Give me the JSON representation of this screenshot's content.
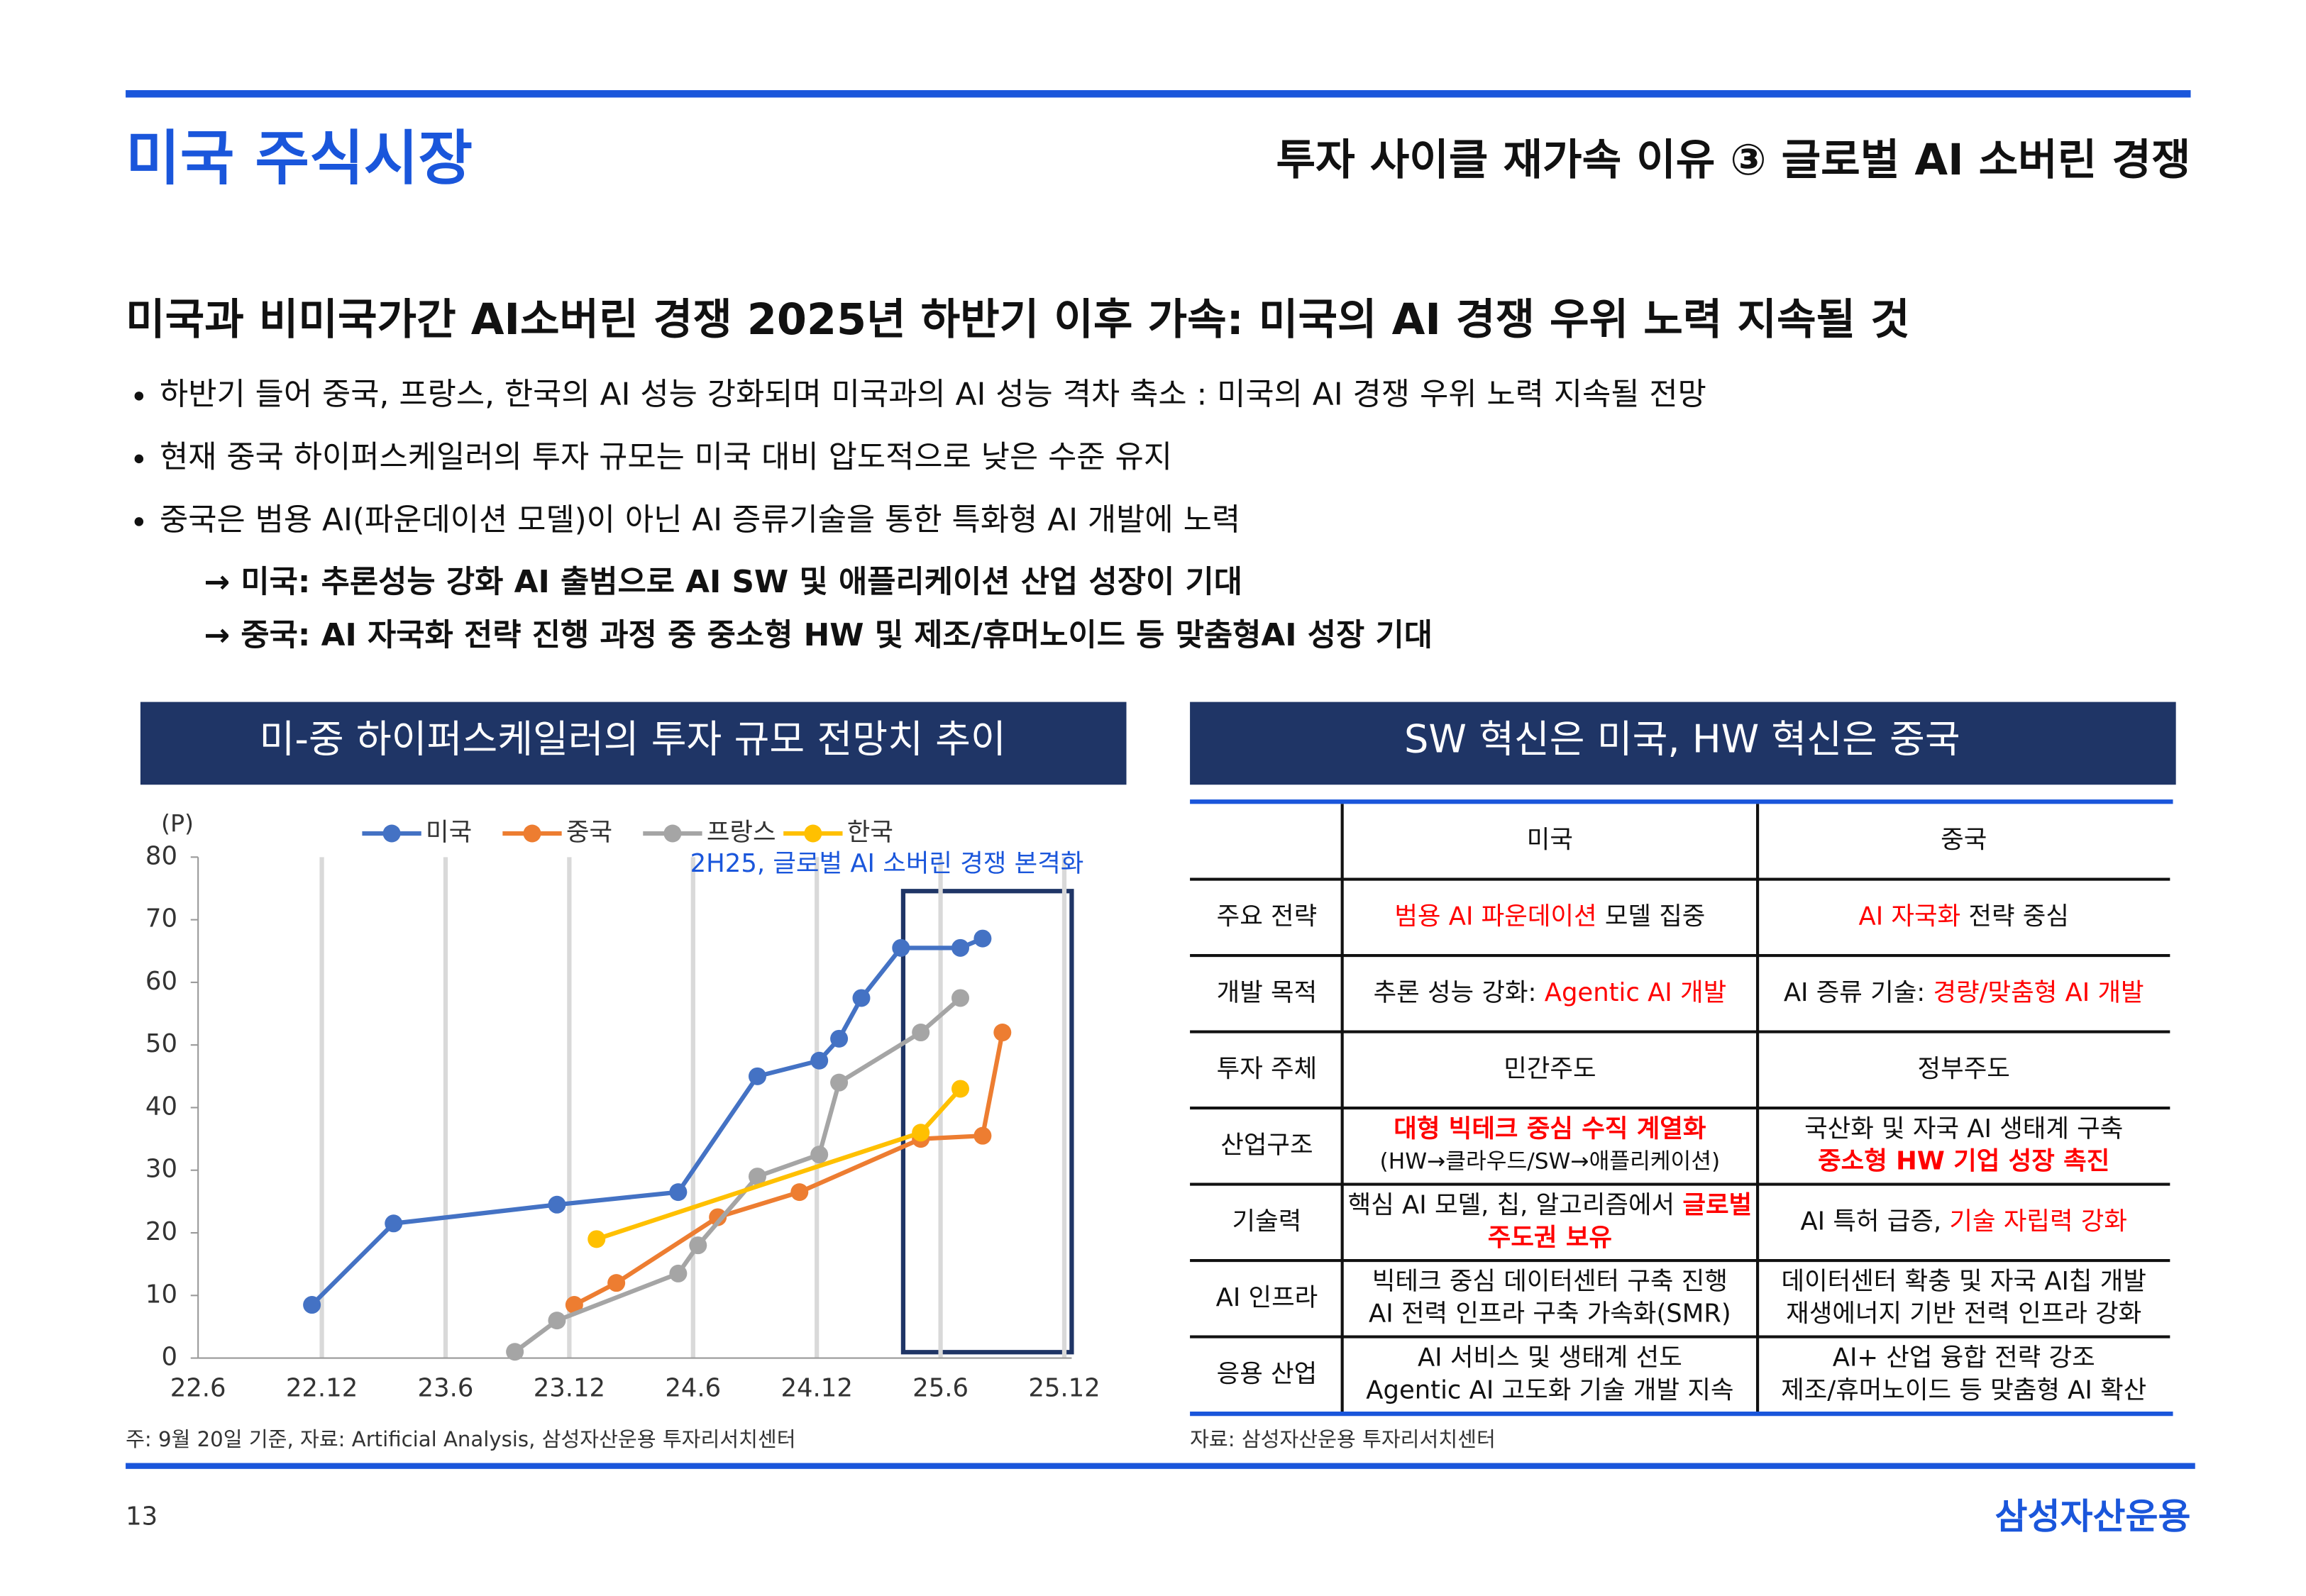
{
  "header": {
    "title": "미국 주식시장",
    "subtitle": "투자 사이클 재가속 이유 ③ 글로벌 AI 소버린 경쟁"
  },
  "headline": "미국과 비미국가간 AI소버린 경쟁 2025년 하반기 이후 가속: 미국의 AI 경쟁 우위 노력 지속될 것",
  "bullets": [
    "하반기 들어 중국, 프랑스, 한국의 AI 성능 강화되며 미국과의 AI 성능 격차 축소 : 미국의 AI 경쟁 우위 노력 지속될 전망",
    "현재 중국 하이퍼스케일러의 투자 규모는 미국 대비 압도적으로 낮은 수준 유지",
    "중국은 범용 AI(파운데이션 모델)이 아닌 AI 증류기술을 통한 특화형 AI 개발에 노력"
  ],
  "arrows": [
    "→ 미국: 추론성능 강화 AI 출범으로 AI SW 및 애플리케이션 산업 성장이 기대",
    "→ 중국: AI 자국화 전략 진행 과정 중 중소형 HW 및 제조/휴머노이드 등 맞춤형AI 성장 기대"
  ],
  "chart_panel": {
    "title": "미-중 하이퍼스케일러의 투자 규모 전망치 추이",
    "note": "주: 9월 20일 기준, 자료: Artificial Analysis, 삼성자산운용 투자리서치센터"
  },
  "chart_data": {
    "type": "line",
    "y_unit": "(P)",
    "annotation": "2H25, 글로벌 AI 소버린 경쟁 본격화",
    "xlim": [
      2022.5,
      2026
    ],
    "xticks": [
      {
        "value": 2022.5,
        "label": "22.6"
      },
      {
        "value": 2023,
        "label": "22.12"
      },
      {
        "value": 2023.5,
        "label": "23.6"
      },
      {
        "value": 2024,
        "label": "23.12"
      },
      {
        "value": 2024.5,
        "label": "24.6"
      },
      {
        "value": 2025,
        "label": "24.12"
      },
      {
        "value": 2025.5,
        "label": "25.6"
      },
      {
        "value": 2026,
        "label": "25.12"
      }
    ],
    "ylim": [
      0,
      80
    ],
    "yticks": [
      0,
      10,
      20,
      30,
      40,
      50,
      60,
      70,
      80
    ],
    "grid": "x",
    "series": [
      {
        "name": "미국",
        "color": "#4472c4",
        "x": [
          2022.96,
          2023.29,
          2023.95,
          2024.44,
          2024.76,
          2025.01,
          2025.09,
          2025.18,
          2025.34,
          2025.58,
          2025.67
        ],
        "values": [
          8.5,
          21.5,
          24.5,
          26.5,
          45,
          47.5,
          51,
          57.5,
          65.5,
          65.5,
          67
        ]
      },
      {
        "name": "중국",
        "color": "#ed7d31",
        "x": [
          2024.02,
          2024.19,
          2024.6,
          2024.93,
          2025.42,
          2025.67,
          2025.75
        ],
        "values": [
          8.5,
          12,
          22.5,
          26.5,
          35,
          35.5,
          52
        ]
      },
      {
        "name": "프랑스",
        "color": "#a5a5a5",
        "x": [
          2023.78,
          2023.95,
          2024.44,
          2024.52,
          2024.76,
          2025.01,
          2025.09,
          2025.42,
          2025.58
        ],
        "values": [
          1,
          6,
          13.5,
          18,
          29,
          32.5,
          44,
          52,
          57.5
        ]
      },
      {
        "name": "한국",
        "color": "#ffc000",
        "x": [
          2024.11,
          2025.42,
          2025.58
        ],
        "values": [
          19,
          36,
          43
        ]
      }
    ]
  },
  "table_panel": {
    "title": "SW 혁신은 미국, HW 혁신은 중국",
    "note": "자료: 삼성자산운용 투자리서치센터"
  },
  "table": {
    "columns": [
      "미국",
      "중국"
    ],
    "rows": [
      {
        "label": "주요 전략",
        "cells": [
          [
            [
              {
                "text": "범용 AI 파운데이션",
                "color": "#ff0000"
              },
              {
                "text": " 모델 집중"
              }
            ]
          ],
          [
            [
              {
                "text": "AI 자국화",
                "color": "#ff0000"
              },
              {
                "text": " 전략 중심"
              }
            ]
          ]
        ]
      },
      {
        "label": "개발 목적",
        "cells": [
          [
            [
              {
                "text": "추론 성능 강화: "
              },
              {
                "text": "Agentic AI 개발",
                "color": "#ff0000"
              }
            ]
          ],
          [
            [
              {
                "text": "AI 증류 기술: "
              },
              {
                "text": "경량/맞춤형 AI 개발",
                "color": "#ff0000"
              }
            ]
          ]
        ]
      },
      {
        "label": "투자 주체",
        "cells": [
          [
            [
              {
                "text": "민간주도"
              }
            ]
          ],
          [
            [
              {
                "text": "정부주도"
              }
            ]
          ]
        ]
      },
      {
        "label": "산업구조",
        "cells": [
          [
            [
              {
                "text": "대형 빅테크 중심 수직 계열화",
                "color": "#ff0000"
              }
            ],
            [
              {
                "text": "(HW→클라우드/SW→애플리케이션)"
              }
            ]
          ],
          [
            [
              {
                "text": "국산화 및 자국 AI 생태계 구축"
              }
            ],
            [
              {
                "text": "중소형 HW 기업 성장 촉진",
                "color": "#ff0000"
              }
            ]
          ]
        ]
      },
      {
        "label": "기술력",
        "cells": [
          [
            [
              {
                "text": "핵심 AI 모델, 칩, 알고리즘에서 "
              },
              {
                "text": "글로벌",
                "color": "#ff0000"
              }
            ],
            [
              {
                "text": "주도권 보유",
                "color": "#ff0000"
              }
            ]
          ],
          [
            [
              {
                "text": "AI 특허 급증, "
              },
              {
                "text": "기술 자립력 강화",
                "color": "#ff0000"
              }
            ]
          ]
        ]
      },
      {
        "label": "AI 인프라",
        "cells": [
          [
            [
              {
                "text": "빅테크 중심 데이터센터 구축 진행"
              }
            ],
            [
              {
                "text": "AI 전력 인프라 구축 가속화(SMR)"
              }
            ]
          ],
          [
            [
              {
                "text": "데이터센터 확충 및 자국 AI칩 개발"
              }
            ],
            [
              {
                "text": "재생에너지 기반 전력 인프라 강화"
              }
            ]
          ]
        ]
      },
      {
        "label": "응용 산업",
        "cells": [
          [
            [
              {
                "text": "AI 서비스 및 생태계 선도"
              }
            ],
            [
              {
                "text": "Agentic AI 고도화 기술 개발 지속"
              }
            ]
          ],
          [
            [
              {
                "text": "AI+ 산업 융합 전략 강조"
              }
            ],
            [
              {
                "text": "제조/휴머노이드 등 맞춤형 AI 확산"
              }
            ]
          ]
        ]
      }
    ]
  },
  "footer": {
    "page": "13",
    "brand": "삼성자산운용"
  }
}
